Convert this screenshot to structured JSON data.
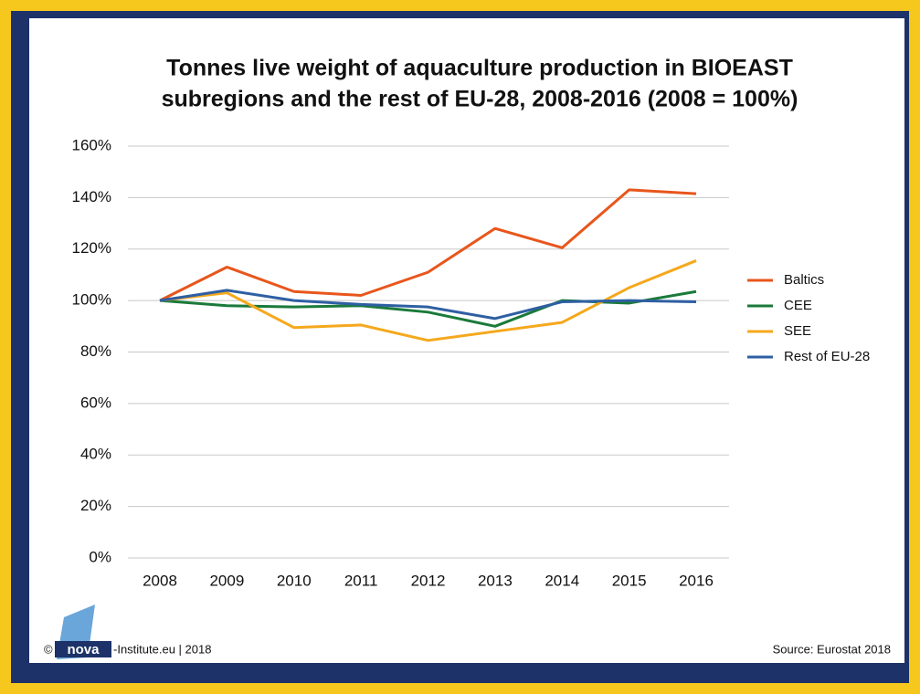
{
  "chart_data": {
    "type": "line",
    "title": [
      "Tonnes live weight of aquaculture production in BIOEAST",
      "subregions and the rest of EU-28, 2008-2016 (2008 = 100%)"
    ],
    "categories": [
      "2008",
      "2009",
      "2010",
      "2011",
      "2012",
      "2013",
      "2014",
      "2015",
      "2016"
    ],
    "series": [
      {
        "name": "Baltics",
        "color": "#e8561c",
        "values": [
          100,
          113,
          103.5,
          102,
          111,
          128,
          120.5,
          143,
          141.5
        ]
      },
      {
        "name": "CEE",
        "color": "#1a7a3a",
        "values": [
          100,
          98,
          97.5,
          98,
          95.5,
          90,
          100,
          99,
          103.5
        ]
      },
      {
        "name": "SEE",
        "color": "#f5a81c",
        "values": [
          100,
          103,
          89.5,
          90.5,
          84.5,
          88,
          91.5,
          105,
          115.5
        ]
      },
      {
        "name": "Rest of EU-28",
        "color": "#2e5fa3",
        "values": [
          100,
          104,
          100,
          98.5,
          97.5,
          93,
          99.5,
          100,
          99.5
        ]
      }
    ],
    "ylim": [
      0,
      160
    ],
    "yticks": [
      {
        "value": 0,
        "label": "0%"
      },
      {
        "value": 20,
        "label": "20%"
      },
      {
        "value": 40,
        "label": "40%"
      },
      {
        "value": 60,
        "label": "60%"
      },
      {
        "value": 80,
        "label": "80%"
      },
      {
        "value": 100,
        "label": "100%"
      },
      {
        "value": 120,
        "label": "120%"
      },
      {
        "value": 140,
        "label": "140%"
      },
      {
        "value": 160,
        "label": "160%"
      }
    ],
    "grid": true,
    "legend": "right"
  },
  "footer": {
    "copyright": "©",
    "logo": "nova",
    "institute": "-Institute.eu | 2018",
    "source": "Source: Eurostat 2018"
  }
}
